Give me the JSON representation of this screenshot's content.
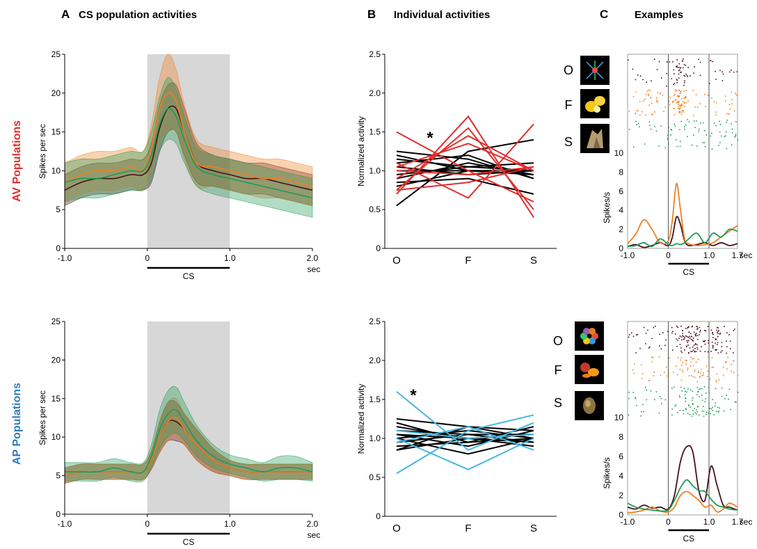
{
  "panels": {
    "a": {
      "letter": "A",
      "title": "CS population activities"
    },
    "b": {
      "letter": "B",
      "title": "Individual activities"
    },
    "c": {
      "letter": "C",
      "title": "Examples"
    }
  },
  "rows": [
    {
      "label_prefix": "AV",
      "label_suffix": " Populations",
      "prefix_color": "#e32d2d",
      "suffix_color": "#e32d2d"
    },
    {
      "label_prefix": "AP",
      "label_suffix": " Populations",
      "prefix_color": "#2b7bbf",
      "suffix_color": "#2b7bbf"
    }
  ],
  "colors": {
    "object": "#4a1018",
    "fruit": "#f07f20",
    "scene": "#1f9a55",
    "av_line": "#e32d2d",
    "ap_line": "#45b7e0",
    "other_line": "#000000",
    "cs_shade": "#d7d7d7"
  },
  "stimulus_icons": [
    {
      "row": 0,
      "letter": "O",
      "icon": "abstract-object-icon"
    },
    {
      "row": 0,
      "letter": "F",
      "icon": "lemon-fruit-icon"
    },
    {
      "row": 0,
      "letter": "S",
      "icon": "rock-scene-icon"
    },
    {
      "row": 1,
      "letter": "O",
      "icon": "colorful-object-icon"
    },
    {
      "row": 1,
      "letter": "F",
      "icon": "apple-orange-fruit-icon"
    },
    {
      "row": 1,
      "letter": "S",
      "icon": "round-scene-icon"
    }
  ],
  "chart_data": [
    {
      "id": "A-top",
      "type": "line",
      "panel": "A",
      "row": 0,
      "ylabel": "Spikes per sec",
      "xlim": [
        -1.0,
        2.0
      ],
      "ylim": [
        0,
        25
      ],
      "x_ticks": [
        "-1.0",
        "0",
        "1.0",
        "2.0"
      ],
      "x_unit": "sec",
      "y_ticks": [
        0,
        5,
        10,
        15,
        20,
        25
      ],
      "cs_bar_label": "CS",
      "cs_window": [
        0,
        1.0
      ],
      "x": [
        -1.0,
        -0.8,
        -0.6,
        -0.4,
        -0.2,
        -0.05,
        0.05,
        0.15,
        0.25,
        0.35,
        0.45,
        0.6,
        0.8,
        1.0,
        1.2,
        1.4,
        1.6,
        1.8,
        2.0
      ],
      "series": [
        {
          "key": "object",
          "values": [
            7.5,
            8.5,
            9,
            9,
            9.5,
            9.5,
            11,
            15.5,
            18,
            18,
            15,
            11,
            10,
            9.5,
            9,
            9,
            8.5,
            8,
            7.5
          ],
          "sem": [
            2,
            2,
            2,
            2,
            2,
            2,
            2.5,
            3,
            3,
            3,
            3,
            2.5,
            2,
            2,
            2,
            2,
            2,
            2,
            2
          ]
        },
        {
          "key": "fruit",
          "values": [
            8.5,
            9.5,
            10,
            10,
            10.5,
            10,
            13,
            18,
            20,
            19,
            15,
            11,
            10.5,
            10,
            9.5,
            9,
            9,
            8.5,
            8
          ],
          "sem": [
            2.5,
            2.5,
            2.5,
            2.5,
            2.5,
            2.5,
            3,
            4,
            5,
            4,
            3.5,
            3,
            2.5,
            2.5,
            2.5,
            2.5,
            2.5,
            2.5,
            2.5
          ]
        },
        {
          "key": "scene",
          "values": [
            8.5,
            9,
            9,
            9.5,
            10,
            10,
            12,
            16,
            18,
            17,
            14,
            10.5,
            9.5,
            9,
            8.5,
            8,
            7.5,
            7,
            6.5
          ],
          "sem": [
            2.5,
            2.5,
            2.5,
            2.5,
            2.5,
            2.5,
            3,
            3.5,
            4,
            3.5,
            3,
            2.5,
            2.5,
            2.5,
            2.5,
            2.5,
            2.5,
            2.5,
            2.5
          ]
        }
      ]
    },
    {
      "id": "A-bottom",
      "type": "line",
      "panel": "A",
      "row": 1,
      "ylabel": "Spikes per sec",
      "xlim": [
        -1.0,
        2.0
      ],
      "ylim": [
        0,
        25
      ],
      "x_ticks": [
        "-1.0",
        "0",
        "1.0",
        "2.0"
      ],
      "x_unit": "sec",
      "y_ticks": [
        0,
        5,
        10,
        15,
        20,
        25
      ],
      "cs_bar_label": "CS",
      "cs_window": [
        0,
        1.0
      ],
      "x": [
        -1.0,
        -0.8,
        -0.6,
        -0.4,
        -0.2,
        -0.05,
        0.05,
        0.15,
        0.25,
        0.35,
        0.45,
        0.6,
        0.8,
        1.0,
        1.2,
        1.4,
        1.6,
        1.8,
        2.0
      ],
      "series": [
        {
          "key": "object",
          "values": [
            5,
            5.5,
            5.5,
            5.5,
            5.5,
            5.5,
            7,
            10,
            12,
            12,
            11,
            9,
            7,
            6,
            5.5,
            5.5,
            5.5,
            5.5,
            5.5
          ],
          "sem": [
            1,
            1,
            1,
            1,
            1,
            1,
            1.2,
            2,
            2.5,
            2.5,
            2,
            2,
            1.5,
            1,
            1,
            1,
            1,
            1,
            1
          ]
        },
        {
          "key": "fruit",
          "values": [
            5,
            5.5,
            5.5,
            5.5,
            5.5,
            5.5,
            7,
            10,
            12,
            12.5,
            11,
            9,
            7,
            6,
            5.5,
            5.5,
            5.5,
            5.5,
            5.5
          ],
          "sem": [
            1,
            1,
            1,
            1,
            1,
            1,
            1.2,
            2,
            2.5,
            2.5,
            2,
            2,
            1.5,
            1,
            1,
            1,
            1,
            1,
            1
          ]
        },
        {
          "key": "scene",
          "values": [
            5.5,
            5.5,
            5.5,
            6,
            5.5,
            5.5,
            7.5,
            11,
            13,
            13.5,
            12,
            9.5,
            7.5,
            6.5,
            6,
            5.5,
            6,
            6,
            5.5
          ],
          "sem": [
            1.2,
            1.2,
            1.2,
            1.2,
            1.2,
            1.2,
            1.5,
            2.5,
            3,
            3,
            2.5,
            2,
            1.5,
            1.2,
            1.2,
            1.2,
            1.5,
            1.5,
            1.2
          ]
        }
      ]
    },
    {
      "id": "B-top",
      "type": "line",
      "panel": "B",
      "row": 0,
      "ylabel": "Normalized activity",
      "ylim": [
        0,
        2.5
      ],
      "categories": [
        "O",
        "F",
        "S"
      ],
      "y_ticks": [
        "0",
        "0.5",
        "1.0",
        "1.5",
        "2.0",
        "2.5"
      ],
      "annotation": "*",
      "highlight": "av_line",
      "highlight_lines": [
        [
          1.5,
          1.0,
          0.6
        ],
        [
          0.7,
          1.7,
          0.4
        ],
        [
          0.75,
          1.55,
          0.5
        ],
        [
          1.05,
          1.35,
          1.0
        ],
        [
          0.9,
          1.45,
          1.0
        ],
        [
          1.1,
          0.65,
          1.6
        ],
        [
          0.75,
          0.85,
          1.05
        ],
        [
          1.0,
          0.95,
          1.05
        ]
      ],
      "other_lines": [
        [
          0.55,
          1.25,
          1.4
        ],
        [
          1.25,
          1.15,
          0.9
        ],
        [
          1.2,
          1.0,
          0.95
        ],
        [
          1.1,
          1.2,
          0.9
        ],
        [
          1.05,
          0.95,
          1.0
        ],
        [
          0.9,
          1.1,
          0.95
        ],
        [
          1.0,
          1.0,
          1.0
        ],
        [
          0.95,
          1.05,
          1.1
        ],
        [
          0.85,
          0.9,
          0.7
        ],
        [
          1.15,
          1.05,
          1.0
        ],
        [
          0.8,
          1.0,
          1.0
        ]
      ]
    },
    {
      "id": "B-bottom",
      "type": "line",
      "panel": "B",
      "row": 1,
      "ylabel": "Normalized activity",
      "ylim": [
        0,
        2.5
      ],
      "categories": [
        "O",
        "F",
        "S"
      ],
      "y_ticks": [
        "0",
        "0.5",
        "1.0",
        "1.5",
        "2.0",
        "2.5"
      ],
      "annotation": "*",
      "highlight": "ap_line",
      "highlight_lines": [
        [
          1.6,
          0.85,
          1.2
        ],
        [
          0.55,
          1.1,
          1.3
        ],
        [
          0.95,
          1.15,
          0.85
        ],
        [
          1.0,
          0.6,
          1.0
        ],
        [
          1.1,
          1.0,
          1.05
        ]
      ],
      "other_lines": [
        [
          1.2,
          0.95,
          1.0
        ],
        [
          1.15,
          1.0,
          1.05
        ],
        [
          1.1,
          1.05,
          0.95
        ],
        [
          1.05,
          0.9,
          1.1
        ],
        [
          1.0,
          1.1,
          1.0
        ],
        [
          0.95,
          1.05,
          1.05
        ],
        [
          0.9,
          0.95,
          1.15
        ],
        [
          0.85,
          1.0,
          0.95
        ],
        [
          1.25,
          1.15,
          1.1
        ],
        [
          1.0,
          0.8,
          1.0
        ],
        [
          0.85,
          1.15,
          1.0
        ],
        [
          1.05,
          1.0,
          0.9
        ]
      ]
    },
    {
      "id": "C-top",
      "type": "line",
      "panel": "C",
      "row": 0,
      "ylabel": "Spikes/s",
      "xlim": [
        -1.0,
        1.7
      ],
      "ylim": [
        0,
        10
      ],
      "x_ticks": [
        "-1.0",
        "0",
        "1.0",
        "1.7"
      ],
      "x_unit": "sec",
      "y_ticks": [
        0,
        2,
        4,
        6,
        8,
        10
      ],
      "cs_bar_label": "CS",
      "cs_window": [
        0,
        1.0
      ],
      "x": [
        -1.0,
        -0.8,
        -0.6,
        -0.4,
        -0.2,
        0,
        0.1,
        0.2,
        0.3,
        0.4,
        0.5,
        0.7,
        0.9,
        1.1,
        1.3,
        1.5,
        1.7
      ],
      "series": [
        {
          "key": "object",
          "values": [
            0.2,
            0.4,
            0.1,
            0.3,
            0.6,
            0.3,
            1.2,
            3.3,
            2.5,
            0.8,
            0.3,
            0.4,
            0.6,
            0.3,
            0.6,
            0.3,
            0.5
          ]
        },
        {
          "key": "fruit",
          "values": [
            0.5,
            1.5,
            3.0,
            2.0,
            0.6,
            0.8,
            3.0,
            6.8,
            4.0,
            1.0,
            0.5,
            0.3,
            0.4,
            0.6,
            1.2,
            1.8,
            2.4
          ]
        },
        {
          "key": "scene",
          "values": [
            0.2,
            0.3,
            0.6,
            0.2,
            1.0,
            0.4,
            0.3,
            0.5,
            0.4,
            0.6,
            1.0,
            1.6,
            0.6,
            1.6,
            1.2,
            2.0,
            1.8
          ]
        }
      ]
    },
    {
      "id": "C-bottom",
      "type": "line",
      "panel": "C",
      "row": 1,
      "ylabel": "Spikes/s",
      "xlim": [
        -1.0,
        1.7
      ],
      "ylim": [
        0,
        10
      ],
      "x_ticks": [
        "-1.0",
        "0",
        "1.0",
        "1.7"
      ],
      "x_unit": "sec",
      "y_ticks": [
        0,
        2,
        4,
        6,
        8,
        10
      ],
      "cs_bar_label": "CS",
      "cs_window": [
        0,
        1.0
      ],
      "x": [
        -1.0,
        -0.8,
        -0.6,
        -0.4,
        -0.2,
        0,
        0.15,
        0.3,
        0.45,
        0.6,
        0.75,
        0.9,
        1.05,
        1.2,
        1.35,
        1.5,
        1.7
      ],
      "series": [
        {
          "key": "object",
          "values": [
            0.8,
            0.6,
            1.0,
            0.7,
            0.8,
            0.6,
            2.0,
            5.5,
            7.0,
            6.5,
            2.5,
            1.5,
            5.0,
            3.0,
            1.0,
            0.8,
            0.5
          ]
        },
        {
          "key": "fruit",
          "values": [
            0.2,
            0.3,
            0.5,
            0.8,
            0.4,
            0.3,
            0.8,
            2.0,
            2.4,
            2.0,
            1.5,
            0.8,
            1.0,
            0.3,
            0.6,
            1.2,
            0.8
          ]
        },
        {
          "key": "scene",
          "values": [
            1.2,
            0.8,
            0.6,
            0.5,
            0.4,
            0.5,
            1.5,
            2.8,
            3.6,
            3.0,
            2.5,
            2.4,
            1.6,
            1.0,
            0.8,
            0.6,
            0.5
          ]
        }
      ]
    }
  ]
}
